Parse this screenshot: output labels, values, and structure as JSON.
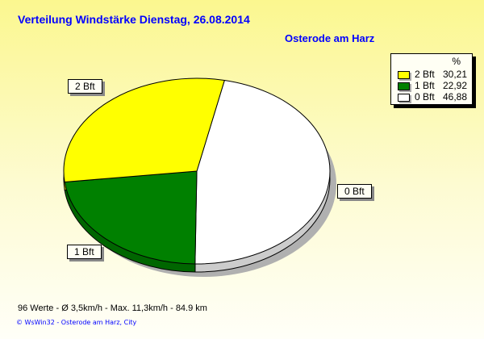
{
  "title": "Verteilung Windstärke  Dienstag, 26.08.2014",
  "location": "Osterode am Harz",
  "legend": {
    "unit": "%",
    "items": [
      {
        "label": "2 Bft",
        "value": "30,21"
      },
      {
        "label": "1 Bft",
        "value": "22,92"
      },
      {
        "label": "0 Bft",
        "value": "46,88"
      }
    ]
  },
  "stats": "96 Werte   -   Ø 3,5km/h  -  Max. 11,3km/h   -   84.9 km",
  "footer": "© WsWin32   -   Osterode am Harz, City",
  "chart_data": {
    "type": "pie",
    "title": "Verteilung Windstärke  Dienstag, 26.08.2014",
    "categories": [
      "2 Bft",
      "1 Bft",
      "0 Bft"
    ],
    "values": [
      30.21,
      22.92,
      46.88
    ],
    "colors": [
      "#ffff00",
      "#008000",
      "#ffffff"
    ],
    "legend_placement": "top-right",
    "three_d": true
  }
}
